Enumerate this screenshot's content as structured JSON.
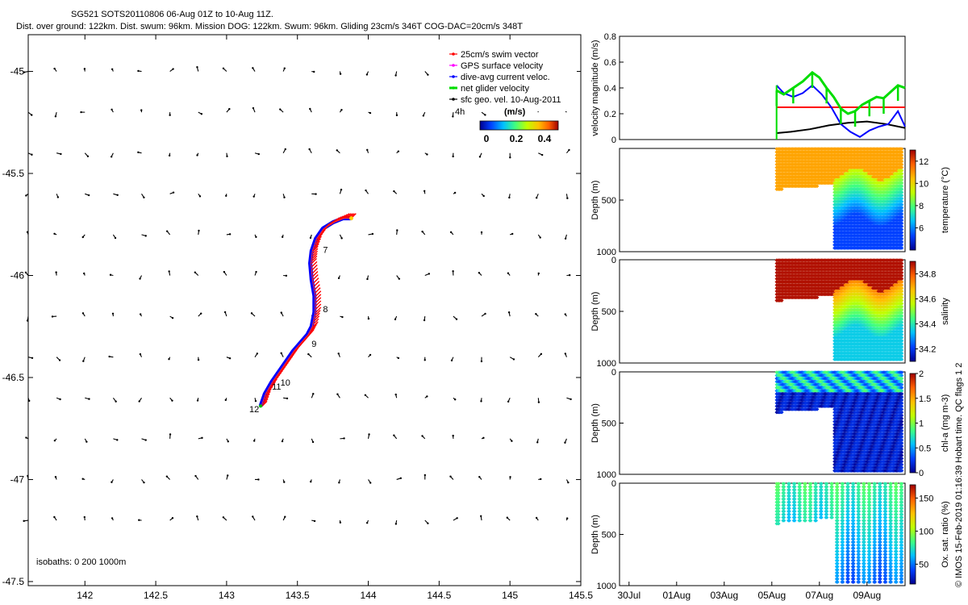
{
  "header": {
    "title": "SG521 SOTS20110806 06-Aug 01Z to 10-Aug 11Z.",
    "stats": "Dist. over ground: 122km. Dist. swum: 96km. Mission DOG: 122km. Swum: 96km. Gliding 23cm/s 346T COG-DAC=20cm/s 348T"
  },
  "side_credit": "© IMOS 15-Feb-2019 01:16:39 Hobart time. QC flags 1  2",
  "chart_data": [
    {
      "type": "scatter",
      "name": "track-map",
      "xlim": [
        141.6,
        145.5
      ],
      "ylim": [
        -47.52,
        -44.82
      ],
      "xticks": [
        142,
        142.5,
        143,
        143.5,
        144,
        144.5,
        145,
        145.5
      ],
      "yticks": [
        -45,
        -45.5,
        -46,
        -46.5,
        -47,
        -47.5
      ],
      "xticklabels": [
        "142",
        "142.5",
        "143",
        "143.5",
        "144",
        "144.5",
        "145",
        "145.5"
      ],
      "yticklabels": [
        "-45",
        "-45.5",
        "-46",
        "-46.5",
        "-47",
        "-47.5"
      ],
      "legend": [
        {
          "label": "25cm/s swim vector",
          "color": "#ff0000"
        },
        {
          "label": "GPS surface velocity",
          "color": "#ff00ff"
        },
        {
          "label": "dive-avg current veloc.",
          "color": "#0000ff"
        },
        {
          "label": "net glider velocity",
          "color": "#00dd00"
        },
        {
          "label": "sfc geo. vel. 10-Aug-2011",
          "color": "#000000"
        }
      ],
      "legend_extra": "4h",
      "colorbar": {
        "label": "(m/s)",
        "ticks": [
          "0",
          "0.2",
          "0.4"
        ],
        "range": [
          0,
          0.5
        ]
      },
      "isobaths_label": "isobaths: 0   200  1000m",
      "track": [
        [
          143.24,
          -46.64
        ],
        [
          143.27,
          -46.58
        ],
        [
          143.32,
          -46.52
        ],
        [
          143.37,
          -46.47
        ],
        [
          143.42,
          -46.42
        ],
        [
          143.47,
          -46.37
        ],
        [
          143.52,
          -46.33
        ],
        [
          143.57,
          -46.29
        ],
        [
          143.6,
          -46.25
        ],
        [
          143.62,
          -46.18
        ],
        [
          143.62,
          -46.1
        ],
        [
          143.6,
          -46.02
        ],
        [
          143.59,
          -45.94
        ],
        [
          143.6,
          -45.88
        ],
        [
          143.63,
          -45.82
        ],
        [
          143.68,
          -45.77
        ],
        [
          143.75,
          -45.74
        ],
        [
          143.82,
          -45.72
        ],
        [
          143.88,
          -45.72
        ]
      ],
      "day_labels": [
        {
          "text": "7",
          "lon": 143.68,
          "lat": -45.89
        },
        {
          "text": "8",
          "lon": 143.68,
          "lat": -46.18
        },
        {
          "text": "9",
          "lon": 143.6,
          "lat": -46.35
        },
        {
          "text": "10",
          "lon": 143.38,
          "lat": -46.54
        },
        {
          "text": "11",
          "lon": 143.32,
          "lat": -46.56
        },
        {
          "text": "12",
          "lon": 143.16,
          "lat": -46.67
        }
      ]
    },
    {
      "type": "line",
      "name": "velocity-magnitude",
      "ylabel": "velocity magnitude (m/s)",
      "ylim": [
        0,
        0.8
      ],
      "yticks": [
        0,
        0.2,
        0.4,
        0.6,
        0.8
      ],
      "xlim": [
        0,
        12
      ],
      "series": [
        {
          "color": "#ff0000",
          "x": [
            6.6,
            12
          ],
          "y": [
            0.25,
            0.25
          ]
        },
        {
          "color": "#000000",
          "x": [
            6.6,
            7.2,
            8,
            8.8,
            9.6,
            10.4,
            11.2,
            12
          ],
          "y": [
            0.05,
            0.06,
            0.08,
            0.11,
            0.13,
            0.14,
            0.12,
            0.09
          ]
        },
        {
          "color": "#0000ff",
          "x": [
            6.6,
            6.9,
            7.3,
            7.7,
            8.1,
            8.5,
            8.9,
            9.3,
            9.7,
            10.1,
            10.5,
            10.9,
            11.3,
            11.7,
            12
          ],
          "y": [
            0.42,
            0.36,
            0.33,
            0.36,
            0.42,
            0.35,
            0.25,
            0.12,
            0.06,
            0.02,
            0.07,
            0.1,
            0.12,
            0.22,
            0.1
          ]
        },
        {
          "color": "#00dd00",
          "x": [
            6.6,
            6.9,
            7.3,
            7.7,
            8.1,
            8.4,
            8.7,
            9,
            9.3,
            9.6,
            9.9,
            10.2,
            10.5,
            10.8,
            11.1,
            11.4,
            11.7,
            12
          ],
          "y": [
            0.38,
            0.35,
            0.4,
            0.45,
            0.52,
            0.48,
            0.4,
            0.33,
            0.24,
            0.2,
            0.22,
            0.27,
            0.3,
            0.33,
            0.32,
            0.37,
            0.42,
            0.4
          ]
        }
      ]
    },
    {
      "type": "heatmap",
      "name": "temperature-section",
      "ylabel": "Depth (m)",
      "ylim": [
        0,
        1000
      ],
      "yticks": [
        0,
        500,
        1000
      ],
      "yticklabels": [
        "",
        "500",
        "1000"
      ],
      "xlim": [
        0,
        12
      ],
      "colorbar": {
        "label": "temperature (°C)",
        "range": [
          4,
          13
        ],
        "ticks": [
          6,
          8,
          10,
          12
        ]
      },
      "stops": [
        "#00008f",
        "#0040ff",
        "#00c0ff",
        "#40ff80",
        "#c0ff00",
        "#ffc000",
        "#ff6000",
        "#a00000"
      ],
      "x_start": 6.6,
      "x_profiles_start": 9.0,
      "x_end": 11.9,
      "surface_value": 10.8,
      "deep_value": 5.3,
      "bottom_early_depth": 400,
      "bottom_late_depth": 980
    },
    {
      "type": "heatmap",
      "name": "salinity-section",
      "ylabel": "Depth (m)",
      "ylim": [
        0,
        1000
      ],
      "yticks": [
        0,
        500,
        1000
      ],
      "yticklabels": [
        "0",
        "500",
        "1000"
      ],
      "xlim": [
        0,
        12
      ],
      "colorbar": {
        "label": "salinity",
        "range": [
          34.1,
          34.9
        ],
        "ticks": [
          34.2,
          34.4,
          34.6,
          34.8
        ]
      },
      "stops": [
        "#00008f",
        "#0040ff",
        "#00c0ff",
        "#40ff80",
        "#c0ff00",
        "#ffc000",
        "#ff6000",
        "#a00000"
      ],
      "x_start": 6.6,
      "x_profiles_start": 9.0,
      "x_end": 11.9,
      "surface_value": 34.88,
      "deep_value": 34.35,
      "bottom_early_depth": 400,
      "bottom_late_depth": 980
    },
    {
      "type": "heatmap",
      "name": "chlorophyll-section",
      "ylabel": "Depth (m)",
      "ylim": [
        0,
        1000
      ],
      "yticks": [
        0,
        500,
        1000
      ],
      "yticklabels": [
        "0",
        "500",
        "1000"
      ],
      "xlim": [
        0,
        12
      ],
      "colorbar": {
        "label": "chl-a (mg m-3)",
        "range": [
          0,
          2
        ],
        "ticks": [
          0,
          0.5,
          1,
          1.5,
          2
        ]
      },
      "stops": [
        "#00008f",
        "#0040ff",
        "#00c0ff",
        "#40ff80",
        "#c0ff00",
        "#ffc000",
        "#ff6000",
        "#a00000"
      ],
      "x_start": 6.6,
      "x_profiles_start": 9.0,
      "x_end": 11.9,
      "surface_value": 0.6,
      "deep_value": 0.02,
      "bottom_early_depth": 400,
      "bottom_late_depth": 980
    },
    {
      "type": "heatmap",
      "name": "oxygen-section",
      "ylabel": "Depth (m)",
      "ylim": [
        0,
        1000
      ],
      "yticks": [
        0,
        500,
        1000
      ],
      "yticklabels": [
        "0",
        "500",
        "1000"
      ],
      "xlim": [
        0,
        12
      ],
      "xticklabels": [
        {
          "x": 0.4,
          "label": "30Jul"
        },
        {
          "x": 2.4,
          "label": "01Aug"
        },
        {
          "x": 4.4,
          "label": "03Aug"
        },
        {
          "x": 6.4,
          "label": "05Aug"
        },
        {
          "x": 8.4,
          "label": "07Aug"
        },
        {
          "x": 10.4,
          "label": "09Aug"
        }
      ],
      "colorbar": {
        "label": "Ox. sat. ratio (%)",
        "range": [
          20,
          170
        ],
        "ticks": [
          50,
          100,
          150
        ]
      },
      "stops": [
        "#00008f",
        "#0040ff",
        "#00c0ff",
        "#40ff80",
        "#c0ff00",
        "#ffc000",
        "#ff6000",
        "#a00000"
      ],
      "x_start": 6.6,
      "x_profiles_start": 9.0,
      "x_end": 11.9,
      "surface_value": 82,
      "deep_value": 60,
      "bottom_early_depth": 400,
      "bottom_late_depth": 980
    }
  ]
}
